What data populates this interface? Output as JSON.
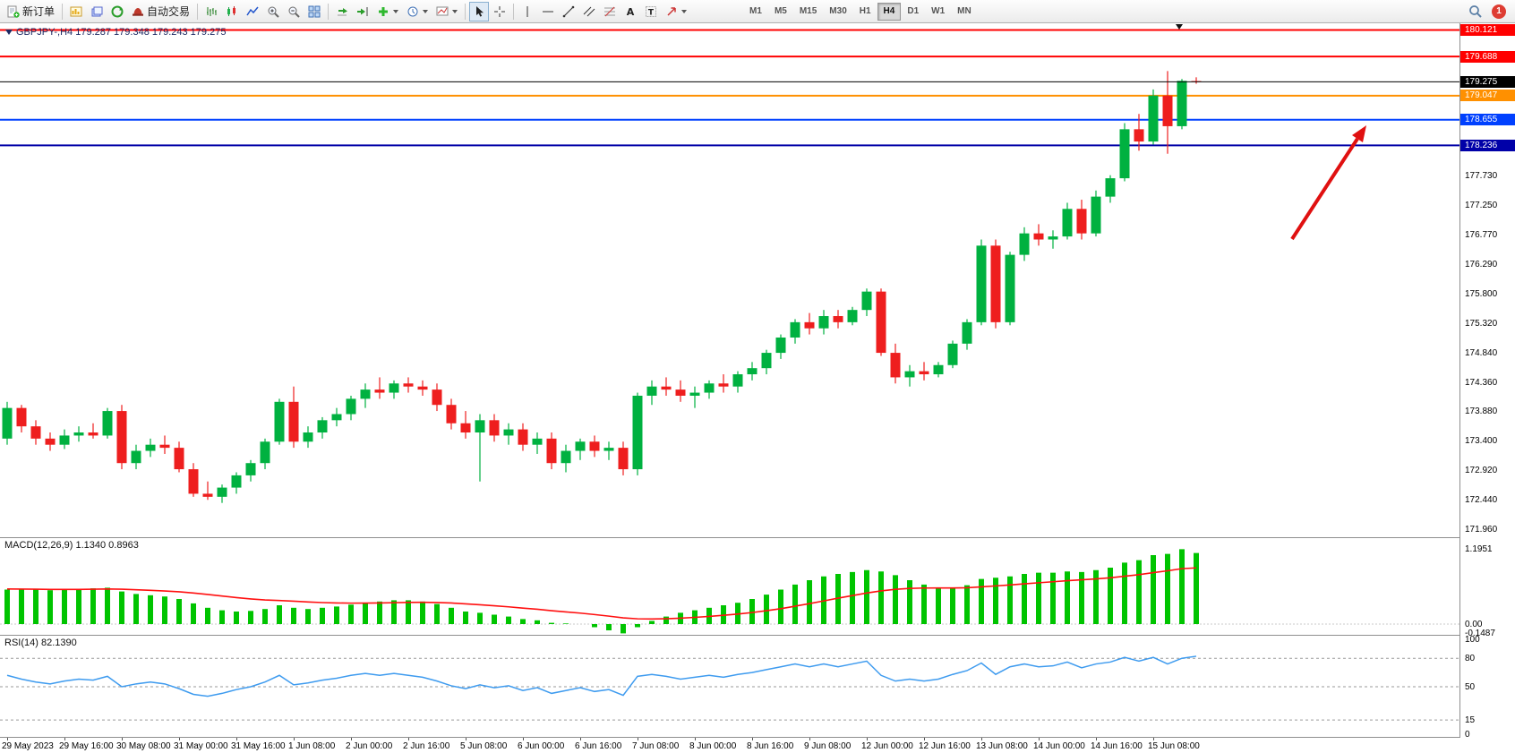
{
  "toolbar": {
    "new_order_label": "新订单",
    "auto_trading_label": "自动交易",
    "timeframes": [
      "M1",
      "M5",
      "M15",
      "M30",
      "H1",
      "H4",
      "D1",
      "W1",
      "MN"
    ],
    "active_timeframe": "H4",
    "notification_count": "1"
  },
  "chart": {
    "symbol_ohlc": "GBPJPY-,H4 179.287 179.348 179.243 179.275"
  },
  "chart_data": {
    "type": "candlestick",
    "symbol": "GBPJPY-",
    "timeframe": "H4",
    "bull_color": "#00b140",
    "bear_color": "#ee1e1e",
    "arrow_color": "#e01010",
    "y_range": [
      171.84,
      180.23
    ],
    "y_ticks": [
      "177.730",
      "177.250",
      "176.770",
      "176.290",
      "175.800",
      "175.320",
      "174.840",
      "174.360",
      "173.880",
      "173.400",
      "172.920",
      "172.440",
      "171.960"
    ],
    "hlines": [
      {
        "price": 180.121,
        "label": "180.121",
        "color": "#ff0000",
        "width": 2
      },
      {
        "price": 179.688,
        "label": "179.688",
        "color": "#ff0000",
        "width": 2
      },
      {
        "price": 179.275,
        "label": "179.275",
        "color": "#000000",
        "width": 1,
        "role": "current-price"
      },
      {
        "price": 179.047,
        "label": "179.047",
        "color": "#ff9000",
        "width": 2
      },
      {
        "price": 178.655,
        "label": "178.655",
        "color": "#0040ff",
        "width": 2
      },
      {
        "price": 178.236,
        "label": "178.236",
        "color": "#0000a8",
        "width": 2
      }
    ],
    "candles": [
      [
        173.45,
        174.05,
        173.35,
        173.95
      ],
      [
        173.95,
        174.0,
        173.55,
        173.65
      ],
      [
        173.65,
        173.75,
        173.35,
        173.45
      ],
      [
        173.45,
        173.55,
        173.25,
        173.35
      ],
      [
        173.35,
        173.6,
        173.28,
        173.5
      ],
      [
        173.5,
        173.65,
        173.4,
        173.55
      ],
      [
        173.55,
        173.7,
        173.45,
        173.5
      ],
      [
        173.5,
        173.95,
        173.45,
        173.9
      ],
      [
        173.9,
        174.0,
        172.95,
        173.05
      ],
      [
        173.05,
        173.35,
        172.95,
        173.25
      ],
      [
        173.25,
        173.45,
        173.15,
        173.35
      ],
      [
        173.35,
        173.5,
        173.2,
        173.3
      ],
      [
        173.3,
        173.4,
        172.9,
        172.95
      ],
      [
        172.95,
        173.05,
        172.5,
        172.55
      ],
      [
        172.55,
        172.75,
        172.45,
        172.5
      ],
      [
        172.5,
        172.7,
        172.4,
        172.65
      ],
      [
        172.65,
        172.9,
        172.55,
        172.85
      ],
      [
        172.85,
        173.1,
        172.75,
        173.05
      ],
      [
        173.05,
        173.45,
        172.95,
        173.4
      ],
      [
        173.4,
        174.1,
        173.35,
        174.05
      ],
      [
        174.05,
        174.3,
        173.3,
        173.4
      ],
      [
        173.4,
        173.65,
        173.3,
        173.55
      ],
      [
        173.55,
        173.8,
        173.45,
        173.75
      ],
      [
        173.75,
        173.95,
        173.65,
        173.85
      ],
      [
        173.85,
        174.15,
        173.75,
        174.1
      ],
      [
        174.1,
        174.35,
        173.95,
        174.25
      ],
      [
        174.25,
        174.45,
        174.1,
        174.2
      ],
      [
        174.2,
        174.4,
        174.1,
        174.35
      ],
      [
        174.35,
        174.45,
        174.2,
        174.3
      ],
      [
        174.3,
        174.4,
        174.15,
        174.25
      ],
      [
        174.25,
        174.35,
        173.9,
        174.0
      ],
      [
        174.0,
        174.1,
        173.6,
        173.7
      ],
      [
        173.7,
        173.9,
        173.45,
        173.55
      ],
      [
        173.55,
        173.85,
        172.75,
        173.75
      ],
      [
        173.75,
        173.85,
        173.4,
        173.5
      ],
      [
        173.5,
        173.7,
        173.35,
        173.6
      ],
      [
        173.6,
        173.7,
        173.25,
        173.35
      ],
      [
        173.35,
        173.55,
        173.2,
        173.45
      ],
      [
        173.45,
        173.55,
        172.95,
        173.05
      ],
      [
        173.05,
        173.35,
        172.9,
        173.25
      ],
      [
        173.25,
        173.45,
        173.1,
        173.4
      ],
      [
        173.4,
        173.5,
        173.15,
        173.25
      ],
      [
        173.25,
        173.4,
        173.1,
        173.3
      ],
      [
        173.3,
        173.4,
        172.85,
        172.95
      ],
      [
        172.95,
        174.2,
        172.85,
        174.15
      ],
      [
        174.15,
        174.4,
        174.0,
        174.3
      ],
      [
        174.3,
        174.45,
        174.15,
        174.25
      ],
      [
        174.25,
        174.4,
        174.05,
        174.15
      ],
      [
        174.15,
        174.3,
        173.95,
        174.2
      ],
      [
        174.2,
        174.4,
        174.1,
        174.35
      ],
      [
        174.35,
        174.5,
        174.2,
        174.3
      ],
      [
        174.3,
        174.55,
        174.2,
        174.5
      ],
      [
        174.5,
        174.7,
        174.4,
        174.6
      ],
      [
        174.6,
        174.9,
        174.5,
        174.85
      ],
      [
        174.85,
        175.15,
        174.75,
        175.1
      ],
      [
        175.1,
        175.4,
        175.0,
        175.35
      ],
      [
        175.35,
        175.5,
        175.15,
        175.25
      ],
      [
        175.25,
        175.55,
        175.15,
        175.45
      ],
      [
        175.45,
        175.55,
        175.25,
        175.35
      ],
      [
        175.35,
        175.6,
        175.3,
        175.55
      ],
      [
        175.55,
        175.9,
        175.45,
        175.85
      ],
      [
        175.85,
        175.9,
        174.8,
        174.85
      ],
      [
        174.85,
        175.0,
        174.35,
        174.45
      ],
      [
        174.45,
        174.65,
        174.3,
        174.55
      ],
      [
        174.55,
        174.7,
        174.4,
        174.5
      ],
      [
        174.5,
        174.7,
        174.45,
        174.65
      ],
      [
        174.65,
        175.05,
        174.6,
        175.0
      ],
      [
        175.0,
        175.4,
        174.9,
        175.35
      ],
      [
        175.35,
        176.7,
        175.3,
        176.6
      ],
      [
        176.6,
        176.7,
        175.25,
        175.35
      ],
      [
        175.35,
        176.5,
        175.3,
        176.45
      ],
      [
        176.45,
        176.9,
        176.35,
        176.8
      ],
      [
        176.8,
        176.95,
        176.6,
        176.7
      ],
      [
        176.7,
        176.85,
        176.55,
        176.75
      ],
      [
        176.75,
        177.3,
        176.7,
        177.2
      ],
      [
        177.2,
        177.35,
        176.7,
        176.8
      ],
      [
        176.8,
        177.5,
        176.75,
        177.4
      ],
      [
        177.4,
        177.75,
        177.3,
        177.7
      ],
      [
        177.7,
        178.6,
        177.65,
        178.5
      ],
      [
        178.5,
        178.75,
        178.15,
        178.3
      ],
      [
        178.3,
        179.15,
        178.25,
        179.05
      ],
      [
        179.05,
        179.45,
        178.1,
        178.55
      ],
      [
        178.55,
        179.32,
        178.5,
        179.29
      ],
      [
        179.287,
        179.348,
        179.243,
        179.275
      ]
    ],
    "x_labels": [
      "29 May 2023",
      "29 May 16:00",
      "30 May 08:00",
      "31 May 00:00",
      "31 May 16:00",
      "1 Jun 08:00",
      "2 Jun 00:00",
      "2 Jun 16:00",
      "5 Jun 08:00",
      "6 Jun 00:00",
      "6 Jun 16:00",
      "7 Jun 08:00",
      "8 Jun 00:00",
      "8 Jun 16:00",
      "9 Jun 08:00",
      "12 Jun 00:00",
      "12 Jun 16:00",
      "13 Jun 08:00",
      "14 Jun 00:00",
      "14 Jun 16:00",
      "15 Jun 08:00"
    ],
    "macd": {
      "label": "MACD(12,26,9) 1.1340 0.8963",
      "hist_color": "#00c400",
      "signal_color": "#ff1010",
      "range": [
        -0.1487,
        1.1951
      ],
      "scale": [
        {
          "label": "1.1951",
          "value": 1.1951
        },
        {
          "label": "0.00",
          "value": 0
        },
        {
          "label": "-0.1487",
          "value": -0.1487
        }
      ],
      "histogram": [
        0.55,
        0.56,
        0.55,
        0.54,
        0.55,
        0.56,
        0.57,
        0.58,
        0.52,
        0.48,
        0.46,
        0.44,
        0.4,
        0.33,
        0.26,
        0.22,
        0.2,
        0.21,
        0.24,
        0.3,
        0.26,
        0.24,
        0.26,
        0.28,
        0.31,
        0.34,
        0.36,
        0.38,
        0.38,
        0.36,
        0.32,
        0.26,
        0.2,
        0.18,
        0.15,
        0.12,
        0.08,
        0.06,
        0.02,
        0.01,
        0.0,
        -0.05,
        -0.1,
        -0.1487,
        -0.05,
        0.05,
        0.12,
        0.18,
        0.22,
        0.26,
        0.3,
        0.34,
        0.4,
        0.47,
        0.55,
        0.63,
        0.7,
        0.76,
        0.8,
        0.83,
        0.86,
        0.84,
        0.78,
        0.7,
        0.63,
        0.58,
        0.58,
        0.62,
        0.72,
        0.74,
        0.76,
        0.8,
        0.82,
        0.82,
        0.84,
        0.83,
        0.86,
        0.9,
        0.98,
        1.02,
        1.1,
        1.12,
        1.1951,
        1.134
      ],
      "signal": [
        0.56,
        0.558,
        0.556,
        0.553,
        0.552,
        0.553,
        0.556,
        0.56,
        0.556,
        0.548,
        0.538,
        0.528,
        0.515,
        0.496,
        0.472,
        0.447,
        0.422,
        0.401,
        0.385,
        0.376,
        0.365,
        0.352,
        0.343,
        0.337,
        0.334,
        0.335,
        0.337,
        0.341,
        0.345,
        0.347,
        0.344,
        0.336,
        0.322,
        0.308,
        0.292,
        0.275,
        0.255,
        0.236,
        0.214,
        0.194,
        0.175,
        0.152,
        0.127,
        0.099,
        0.084,
        0.081,
        0.085,
        0.094,
        0.107,
        0.122,
        0.14,
        0.16,
        0.184,
        0.213,
        0.246,
        0.285,
        0.326,
        0.37,
        0.413,
        0.454,
        0.495,
        0.529,
        0.554,
        0.569,
        0.575,
        0.576,
        0.576,
        0.58,
        0.594,
        0.609,
        0.624,
        0.642,
        0.659,
        0.675,
        0.692,
        0.706,
        0.721,
        0.739,
        0.763,
        0.789,
        0.82,
        0.85,
        0.884,
        0.8963
      ]
    },
    "rsi": {
      "label": "RSI(14) 82.1390",
      "line_color": "#3e9bef",
      "levels": [
        80,
        50,
        15
      ],
      "scale": [
        {
          "label": "100",
          "value": 100
        },
        {
          "label": "80",
          "value": 80
        },
        {
          "label": "50",
          "value": 50
        },
        {
          "label": "15",
          "value": 15
        },
        {
          "label": "0",
          "value": 0
        }
      ],
      "values": [
        62,
        58,
        55,
        53,
        56,
        58,
        57,
        61,
        50,
        53,
        55,
        53,
        48,
        42,
        40,
        43,
        47,
        50,
        55,
        62,
        52,
        54,
        57,
        59,
        62,
        64,
        62,
        64,
        62,
        60,
        56,
        51,
        48,
        52,
        49,
        51,
        46,
        49,
        43,
        46,
        49,
        45,
        47,
        41,
        61,
        63,
        61,
        58,
        60,
        62,
        60,
        63,
        65,
        68,
        71,
        74,
        71,
        74,
        71,
        74,
        77,
        62,
        56,
        58,
        56,
        58,
        63,
        67,
        75,
        63,
        71,
        74,
        71,
        72,
        76,
        70,
        74,
        76,
        81,
        77,
        81,
        74,
        80,
        82.139
      ]
    }
  }
}
